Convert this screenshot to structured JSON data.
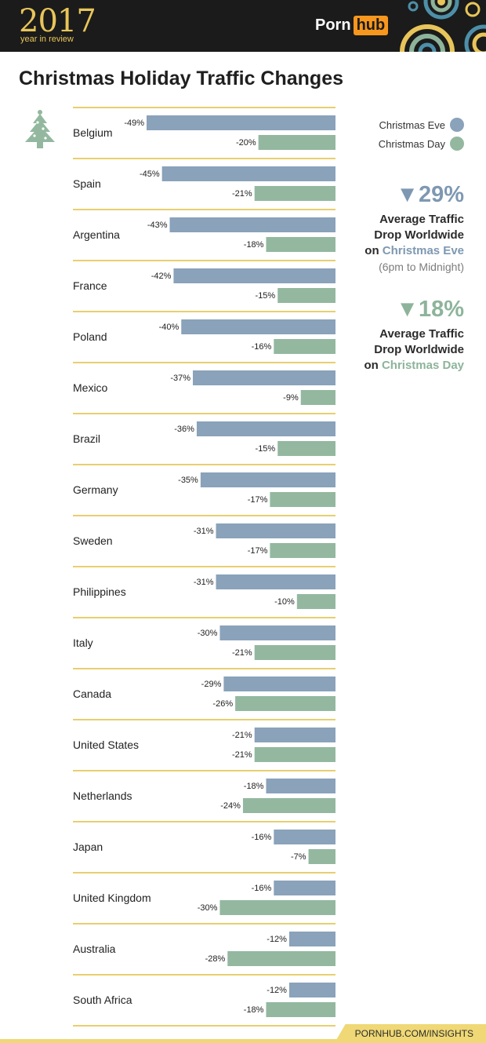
{
  "header": {
    "year": "2017",
    "subtitle": "year in review",
    "logo_left": "Porn",
    "logo_right": "hub"
  },
  "colors": {
    "eve": "#8aa2ba",
    "day": "#93b89f",
    "rule": "#e8cf6f",
    "text": "#222222"
  },
  "chart_data": {
    "type": "bar",
    "orientation": "horizontal",
    "title": "Christmas Holiday Traffic Changes",
    "categories": [
      "Belgium",
      "Spain",
      "Argentina",
      "France",
      "Poland",
      "Mexico",
      "Brazil",
      "Germany",
      "Sweden",
      "Philippines",
      "Italy",
      "Canada",
      "United States",
      "Netherlands",
      "Japan",
      "United Kingdom",
      "Australia",
      "South Africa"
    ],
    "series": [
      {
        "name": "Christmas Eve",
        "values": [
          -49,
          -45,
          -43,
          -42,
          -40,
          -37,
          -36,
          -35,
          -31,
          -31,
          -30,
          -29,
          -21,
          -18,
          -16,
          -16,
          -12,
          -12
        ]
      },
      {
        "name": "Christmas Day",
        "values": [
          -20,
          -21,
          -18,
          -15,
          -16,
          -9,
          -15,
          -17,
          -17,
          -10,
          -21,
          -26,
          -21,
          -24,
          -7,
          -30,
          -28,
          -18
        ]
      }
    ],
    "value_suffix": "%",
    "xlim": [
      -49,
      0
    ]
  },
  "legend": {
    "eve_label": "Christmas Eve",
    "day_label": "Christmas Day"
  },
  "stats": {
    "eve": {
      "value": "29%",
      "line1": "Average Traffic",
      "line2": "Drop Worldwide",
      "on": "on",
      "holiday": "Christmas Eve",
      "note": "(6pm to Midnight)"
    },
    "day": {
      "value": "18%",
      "line1": "Average Traffic",
      "line2": "Drop Worldwide",
      "on": "on",
      "holiday": "Christmas Day"
    }
  },
  "footer": {
    "url": "PORNHUB.COM/INSIGHTS"
  }
}
